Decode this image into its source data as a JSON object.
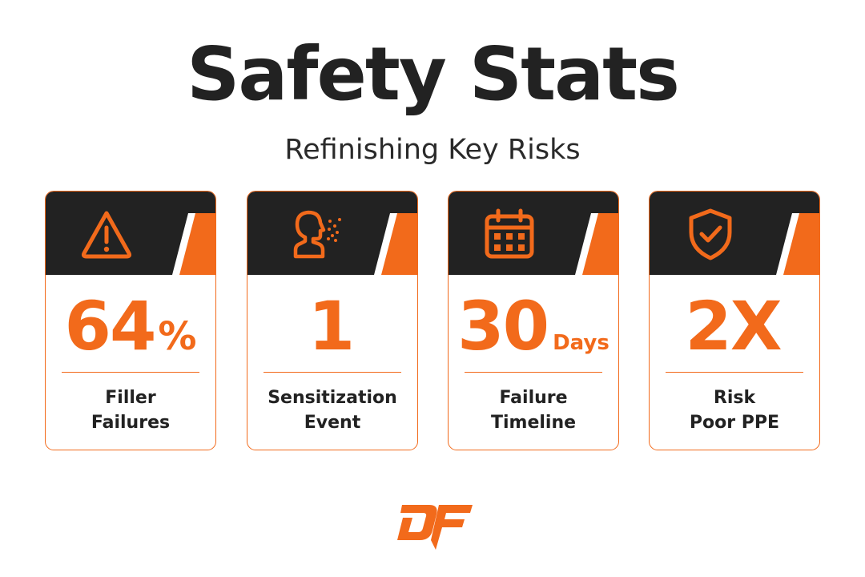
{
  "title": "Safety Stats",
  "subtitle": "Refinishing Key Risks",
  "colors": {
    "accent": "#f26a1b",
    "dark": "#222222",
    "background": "#ffffff"
  },
  "cards": [
    {
      "icon": "warning-triangle-icon",
      "value": "64",
      "unit": "%",
      "label_line1": "Filler",
      "label_line2": "Failures"
    },
    {
      "icon": "head-inhaling-particles-icon",
      "value": "1",
      "unit": "",
      "label_line1": "Sensitization",
      "label_line2": "Event"
    },
    {
      "icon": "calendar-icon",
      "value": "30",
      "unit": "Days",
      "label_line1": "Failure",
      "label_line2": "Timeline"
    },
    {
      "icon": "shield-check-icon",
      "value": "2X",
      "unit": "",
      "label_line1": "Risk",
      "label_line2": "Poor PPE"
    }
  ],
  "logo": {
    "text": "DF",
    "icon": "df-brand-logo"
  }
}
